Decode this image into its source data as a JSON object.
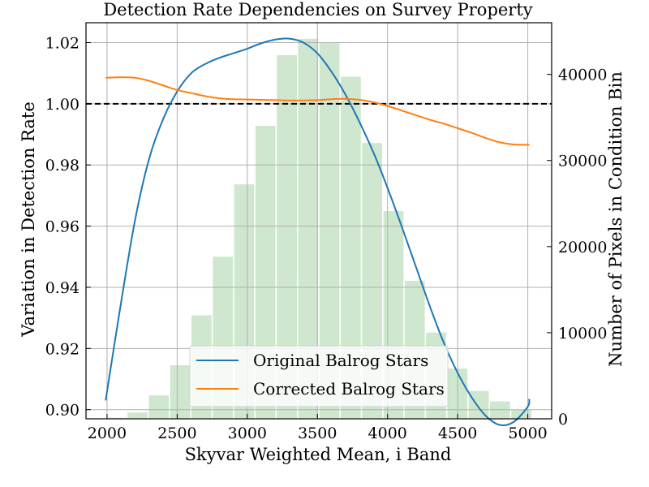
{
  "chart_data": {
    "type": "line",
    "title": "Detection Rate Dependencies on Survey Property",
    "xlabel": "Skyvar Weighted Mean, i Band",
    "ylabel": "Variation in Detection Rate",
    "y2label": "Number of Pixels in Condition Bin",
    "xlim": [
      1850,
      5170
    ],
    "ylim": [
      0.897,
      1.0265
    ],
    "y2lim": [
      0,
      46000
    ],
    "x_ticks": [
      "2000",
      "2500",
      "3000",
      "3500",
      "4000",
      "4500",
      "5000"
    ],
    "y_ticks": [
      "0.90",
      "0.92",
      "0.94",
      "0.96",
      "0.98",
      "1.00",
      "1.02"
    ],
    "y2_ticks": [
      "0",
      "10000",
      "20000",
      "30000",
      "40000"
    ],
    "grid": true,
    "reference_line": {
      "y": 1.0,
      "style": "dashed",
      "color": "#000000"
    },
    "histogram": {
      "color": "#a8d4a6",
      "bin_start": 1990,
      "bin_width": 152,
      "counts": [
        200,
        800,
        2800,
        6300,
        12100,
        18900,
        27300,
        34100,
        42300,
        44200,
        43700,
        39800,
        32100,
        24200,
        16100,
        10100,
        5900,
        3300,
        2100,
        1100
      ]
    },
    "series": [
      {
        "name": "Original Balrog Stars",
        "color": "#1f77b4",
        "x": [
          1990,
          2100,
          2200,
          2300,
          2400,
          2500,
          2600,
          2700,
          2800,
          2900,
          3000,
          3100,
          3200,
          3300,
          3400,
          3500,
          3600,
          3700,
          3800,
          3900,
          4000,
          4100,
          4200,
          4300,
          4400,
          4500,
          4600,
          4700,
          4800,
          4900,
          5000,
          5010
        ],
        "y": [
          0.903,
          0.935,
          0.962,
          0.982,
          0.995,
          1.004,
          1.01,
          1.013,
          1.015,
          1.0165,
          1.018,
          1.0198,
          1.021,
          1.0213,
          1.02,
          1.0165,
          1.0105,
          1.003,
          0.994,
          0.984,
          0.9725,
          0.96,
          0.947,
          0.934,
          0.922,
          0.912,
          0.904,
          0.898,
          0.895,
          0.896,
          0.901,
          0.9035
        ]
      },
      {
        "name": "Corrected Balrog Stars",
        "color": "#ff7f0e",
        "x": [
          1990,
          2100,
          2200,
          2300,
          2400,
          2500,
          2600,
          2700,
          2800,
          2900,
          3000,
          3100,
          3200,
          3300,
          3400,
          3500,
          3600,
          3700,
          3800,
          3900,
          4000,
          4100,
          4200,
          4300,
          4400,
          4500,
          4600,
          4700,
          4800,
          4900,
          5000,
          5010
        ],
        "y": [
          1.0085,
          1.0087,
          1.0085,
          1.0075,
          1.006,
          1.0045,
          1.0035,
          1.0025,
          1.0018,
          1.0015,
          1.0014,
          1.0013,
          1.0012,
          1.0011,
          1.0011,
          1.0012,
          1.0015,
          1.0016,
          1.0013,
          1.0005,
          0.9993,
          0.9978,
          0.9963,
          0.9948,
          0.9935,
          0.992,
          0.9905,
          0.9888,
          0.9874,
          0.9867,
          0.9866,
          0.9865
        ]
      }
    ],
    "legend": {
      "placement": "lower-center"
    }
  }
}
